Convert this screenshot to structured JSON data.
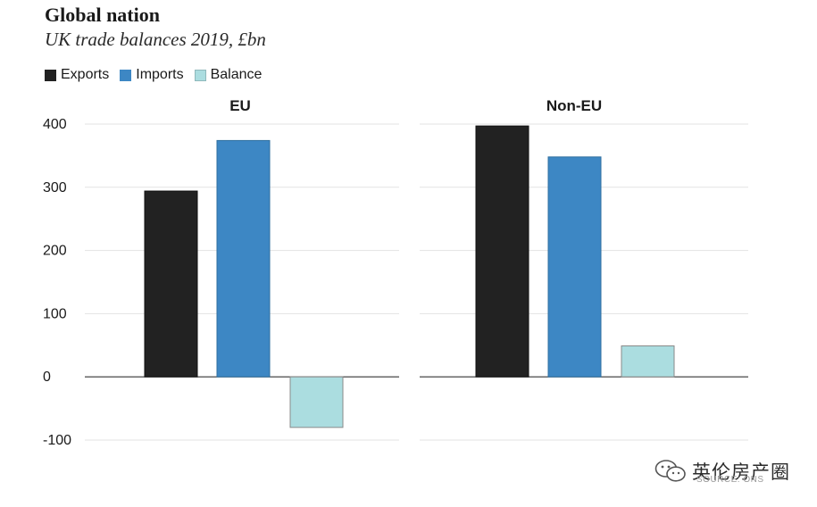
{
  "chart_data": {
    "type": "bar",
    "title": "Global nation",
    "subtitle": "UK trade balances 2019, £bn",
    "legend_placement": "top-left",
    "grid": true,
    "ylim": [
      -100,
      400
    ],
    "yticks": [
      400,
      300,
      200,
      100,
      0,
      -100
    ],
    "series": [
      {
        "name": "Exports",
        "color": "#222222"
      },
      {
        "name": "Imports",
        "color": "#3d87c4"
      },
      {
        "name": "Balance",
        "color": "#abdde0"
      }
    ],
    "panels": [
      {
        "name": "EU",
        "values": {
          "Exports": 294,
          "Imports": 374,
          "Balance": -80
        }
      },
      {
        "name": "Non-EU",
        "values": {
          "Exports": 397,
          "Imports": 348,
          "Balance": 49
        }
      }
    ]
  },
  "watermark": {
    "icon": "wechat-icon",
    "text": "英伦房产圈",
    "source_label": "SOURCE: ONS"
  }
}
